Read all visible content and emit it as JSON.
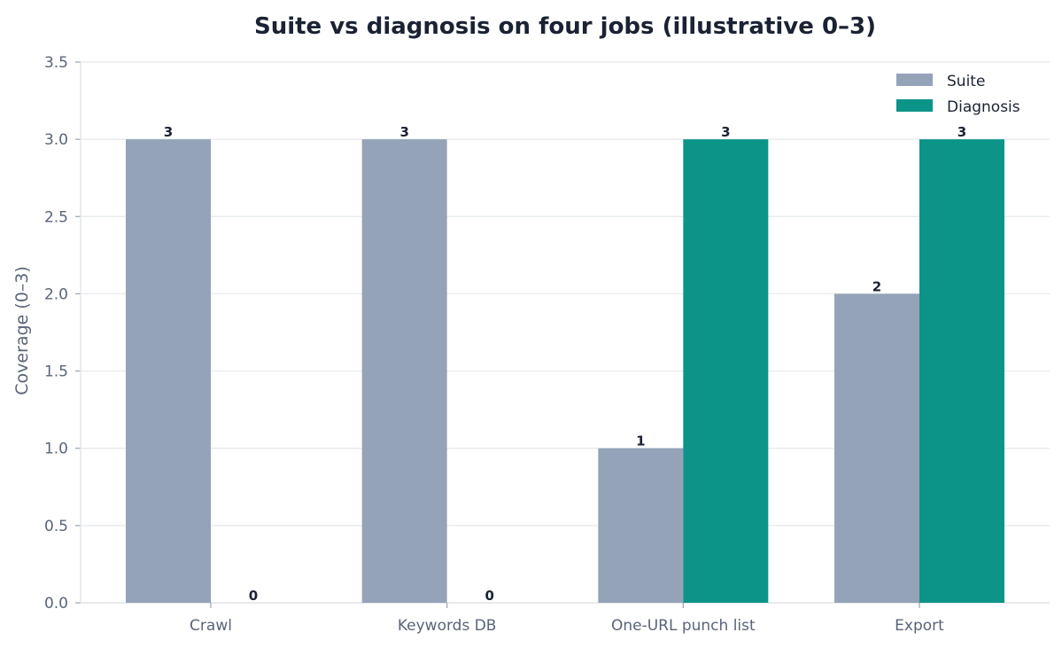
{
  "chart_data": {
    "type": "bar",
    "title": "Suite vs diagnosis on four jobs (illustrative 0–3)",
    "xlabel": "",
    "ylabel": "Coverage (0–3)",
    "categories": [
      "Crawl",
      "Keywords DB",
      "One-URL punch list",
      "Export"
    ],
    "series": [
      {
        "name": "Suite",
        "values": [
          3,
          3,
          1,
          2
        ],
        "color": "#94a3b8"
      },
      {
        "name": "Diagnosis",
        "values": [
          0,
          0,
          3,
          3
        ],
        "color": "#0d9488"
      }
    ],
    "ylim": [
      0,
      3.5
    ],
    "yticks": [
      "0.0",
      "0.5",
      "1.0",
      "1.5",
      "2.0",
      "2.5",
      "3.0",
      "3.5"
    ],
    "grid": "horizontal",
    "legend": "top-right",
    "colors": {
      "grid": "#e5e8ec",
      "axis": "#e2e6eb",
      "tick": "#5a6478"
    }
  }
}
